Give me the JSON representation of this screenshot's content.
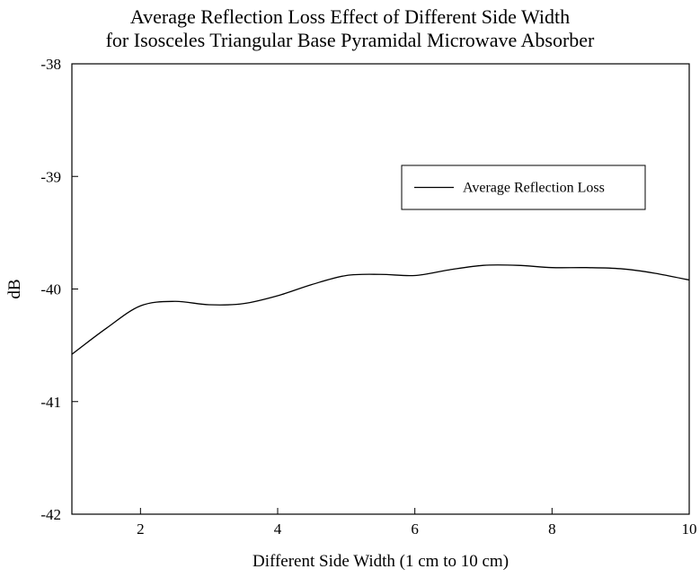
{
  "chart_data": {
    "type": "line",
    "title_line1": "Average Reflection Loss Effect of Different Side Width",
    "title_line2": "for Isosceles Triangular Base Pyramidal Microwave Absorber",
    "xlabel": "Different Side Width (1 cm to 10 cm)",
    "ylabel": "dB",
    "xlim": [
      1,
      10
    ],
    "ylim": [
      -42,
      -38
    ],
    "xticks": [
      2,
      4,
      6,
      8,
      10
    ],
    "yticks": [
      -38,
      -39,
      -40,
      -41,
      -42
    ],
    "grid": false,
    "legend_position": "top-right",
    "series": [
      {
        "name": "Average Reflection Loss",
        "color": "#000000",
        "x": [
          1,
          1.5,
          2,
          2.5,
          3,
          3.5,
          4,
          4.5,
          5,
          5.5,
          6,
          6.5,
          7,
          7.5,
          8,
          8.5,
          9,
          9.5,
          10
        ],
        "y": [
          -40.58,
          -40.35,
          -40.15,
          -40.11,
          -40.14,
          -40.13,
          -40.06,
          -39.96,
          -39.88,
          -39.87,
          -39.88,
          -39.83,
          -39.79,
          -39.79,
          -39.81,
          -39.81,
          -39.82,
          -39.86,
          -39.92
        ]
      }
    ]
  }
}
